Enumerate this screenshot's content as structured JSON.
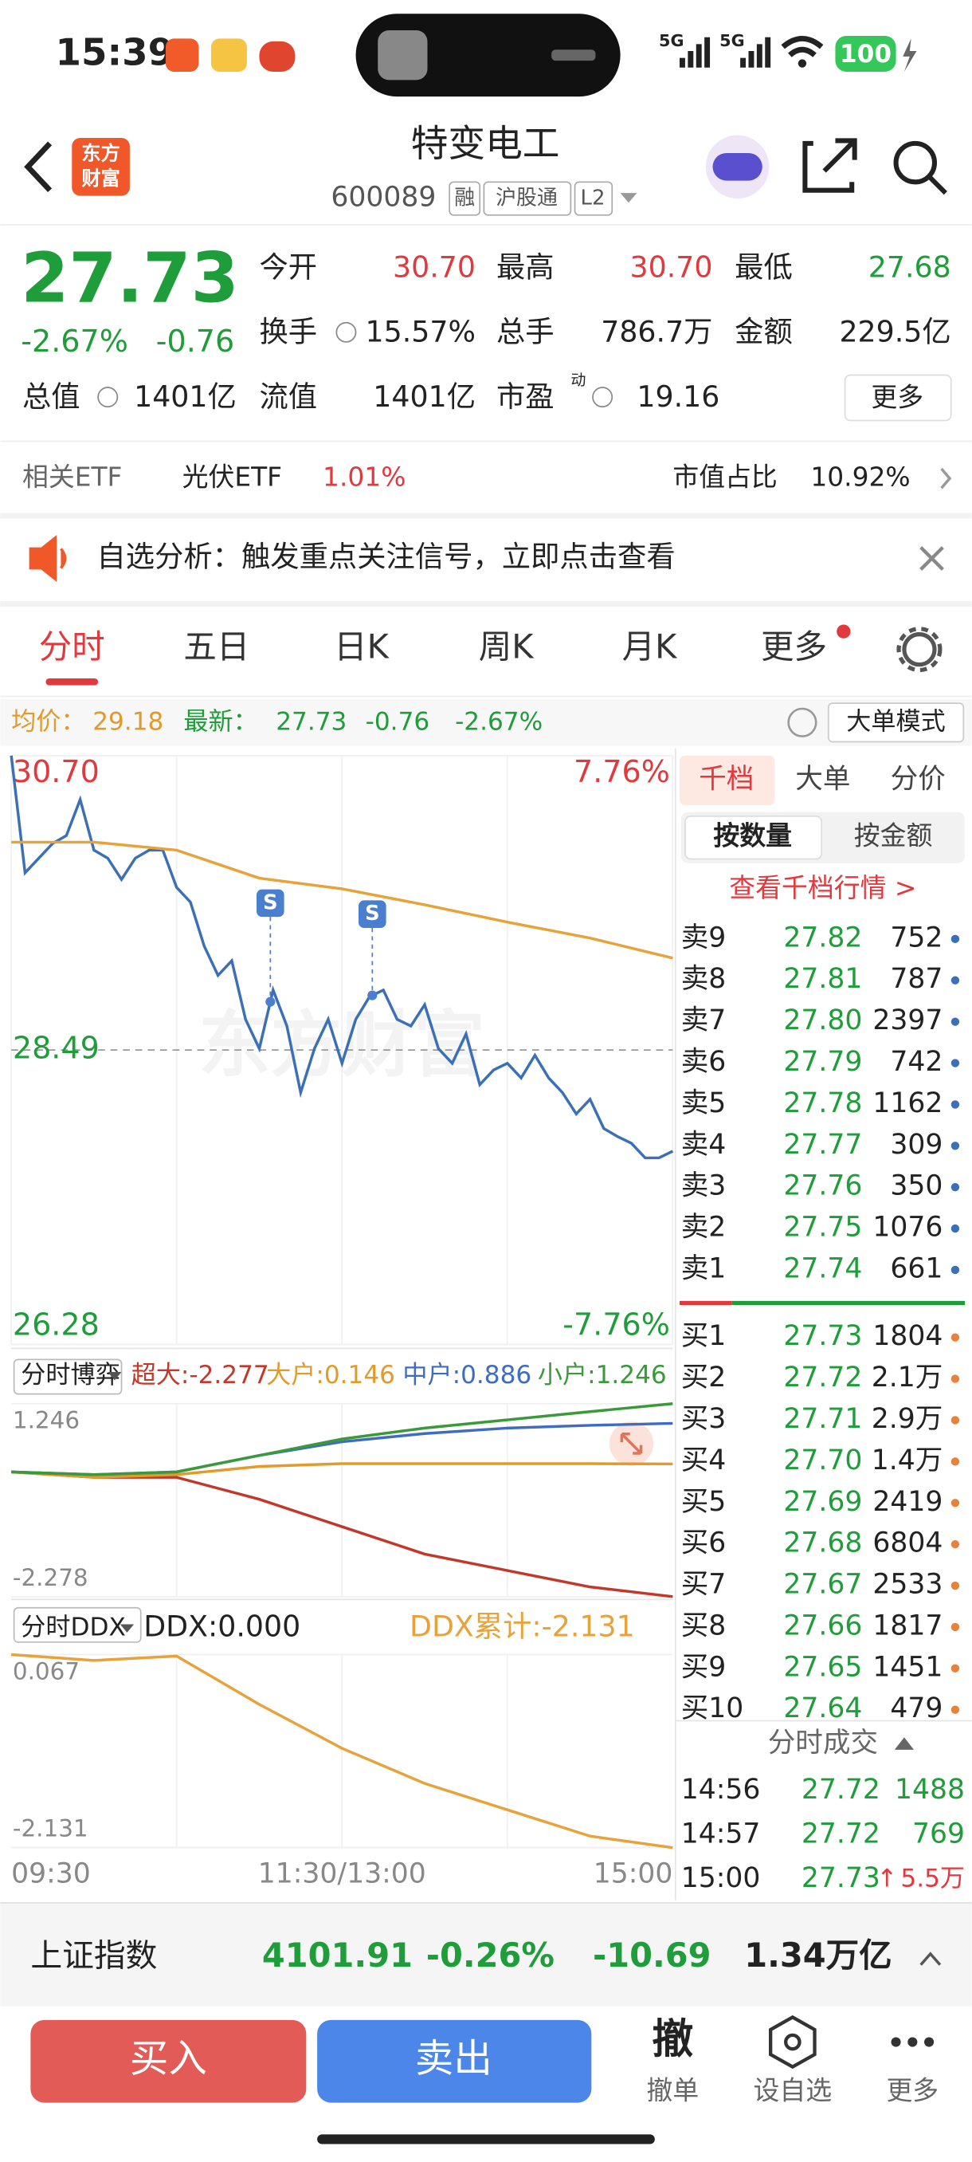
{
  "status_bar": {
    "time": "15:39",
    "network": "5G",
    "network2": "5G",
    "battery": "100"
  },
  "header": {
    "logo_line1": "东方",
    "logo_line2": "财富",
    "title": "特变电工",
    "code": "600089",
    "tags": [
      "融",
      "沪股通",
      "L2"
    ]
  },
  "quote": {
    "price": "27.73",
    "change_pct": "-2.67%",
    "change": "-0.76",
    "open_label": "今开",
    "open": "30.70",
    "high_label": "最高",
    "high": "30.70",
    "low_label": "最低",
    "low": "27.68",
    "turnover_rate_label": "换手",
    "turnover_rate": "15.57%",
    "volume_label": "总手",
    "volume": "786.7万",
    "amount_label": "金额",
    "amount": "229.5亿",
    "total_value_label": "总值",
    "total_value": "1401亿",
    "float_value_label": "流值",
    "float_value": "1401亿",
    "pe_label": "市盈",
    "pe_superscript": "动",
    "pe": "19.16",
    "more": "更多"
  },
  "etf": {
    "label": "相关ETF",
    "name": "光伏ETF",
    "change": "1.01%",
    "share_label": "市值占比",
    "share": "10.92%"
  },
  "notice": {
    "text": "自选分析：触发重点关注信号，立即点击查看"
  },
  "tabs": [
    "分时",
    "五日",
    "日K",
    "周K",
    "月K",
    "更多"
  ],
  "chart_info": {
    "avg_label": "均价：",
    "avg": "29.18",
    "latest_label": "最新：",
    "latest": "27.73",
    "change": "-0.76",
    "change_pct": "-2.67%",
    "mode": "大单模式"
  },
  "chart_data": [
    {
      "type": "line",
      "watermark": "东方财富",
      "x": [
        0,
        5,
        10,
        15,
        20,
        25,
        30,
        35,
        40,
        45,
        50,
        55,
        60,
        65,
        70,
        75,
        80,
        85,
        90,
        95,
        100,
        105,
        110,
        115,
        120,
        125,
        130,
        135,
        140,
        145,
        150,
        155,
        160,
        165,
        170,
        175,
        180,
        185,
        190,
        195,
        200,
        205,
        210,
        215,
        220,
        225,
        230,
        235,
        240
      ],
      "xlim": [
        0,
        240
      ],
      "xticks": [
        {
          "value": 0,
          "label": "09:30"
        },
        {
          "value": 120,
          "label": "11:30/13:00"
        },
        {
          "value": 240,
          "label": "15:00"
        }
      ],
      "ylim": [
        26.28,
        30.7
      ],
      "yticks": [
        26.28,
        28.49,
        {
          "value": 30.7,
          "label": "30.70"
        }
      ],
      "y2lim": [
        -7.76,
        7.76
      ],
      "y2ticks": [
        {
          "value": -7.76,
          "label": "-7.76%"
        },
        {
          "value": 7.76,
          "label": "7.76%"
        }
      ],
      "series": [
        {
          "color": "#3b6fb6",
          "values": [
            30.7,
            29.82,
            29.93,
            30.04,
            30.1,
            30.37,
            29.99,
            29.93,
            29.77,
            29.93,
            29.99,
            29.99,
            29.71,
            29.6,
            29.27,
            29.05,
            29.16,
            28.72,
            28.5,
            28.94,
            28.67,
            28.17,
            28.5,
            28.72,
            28.39,
            28.72,
            28.89,
            28.94,
            28.72,
            28.67,
            28.83,
            28.5,
            28.39,
            28.61,
            28.23,
            28.34,
            28.39,
            28.28,
            28.45,
            28.28,
            28.17,
            28.01,
            28.12,
            27.9,
            27.84,
            27.79,
            27.68,
            27.68,
            27.73
          ]
        },
        {
          "color": "#e8a23a",
          "x": [
            0,
            30,
            60,
            90,
            120,
            150,
            180,
            210,
            240
          ],
          "values": [
            30.05,
            30.05,
            29.99,
            29.78,
            29.7,
            29.58,
            29.45,
            29.33,
            29.18
          ]
        }
      ],
      "annotations": [
        {
          "label": "S",
          "x": 94
        },
        {
          "label": "S",
          "x": 131
        }
      ]
    },
    {
      "type": "line",
      "selector": "分时博弈",
      "x": [
        0,
        30,
        60,
        90,
        120,
        150,
        180,
        210,
        240
      ],
      "xlim": [
        0,
        240
      ],
      "ylim": [
        -2.278,
        1.246
      ],
      "yticks": [
        -2.278,
        1.246
      ],
      "series": [
        {
          "name": "超大:",
          "color": "#c0392b",
          "values": [
            0,
            -0.1,
            -0.1,
            -0.5,
            -1.0,
            -1.5,
            -1.8,
            -2.1,
            -2.277
          ]
        },
        {
          "name": "大户:",
          "color": "#e39a2a",
          "values": [
            0,
            -0.1,
            -0.05,
            0.1,
            0.15,
            0.15,
            0.15,
            0.15,
            0.146
          ]
        },
        {
          "name": "中户:",
          "color": "#3f6cc0",
          "values": [
            0,
            -0.05,
            0.0,
            0.3,
            0.55,
            0.7,
            0.8,
            0.85,
            0.886
          ]
        },
        {
          "name": "小户:",
          "color": "#3a9a3a",
          "values": [
            0,
            -0.05,
            0.0,
            0.3,
            0.6,
            0.8,
            0.95,
            1.1,
            1.246
          ]
        }
      ]
    },
    {
      "type": "line",
      "selector": "分时DDX",
      "indicator": "DDX:0.000",
      "x": [
        0,
        30,
        60,
        90,
        120,
        150,
        180,
        210,
        240
      ],
      "xlim": [
        0,
        240
      ],
      "ylim": [
        -2.131,
        0.067
      ],
      "yticks": [
        -2.131,
        0.067
      ],
      "series": [
        {
          "name": "DDX累计:",
          "color": "#e8a23a",
          "values": [
            0.067,
            0.0,
            0.05,
            -0.5,
            -1.0,
            -1.4,
            -1.7,
            -2.0,
            -2.131
          ]
        }
      ]
    }
  ],
  "order_book": {
    "tabs": [
      "千档",
      "大单",
      "分价"
    ],
    "modes": [
      "按数量",
      "按金额"
    ],
    "link": "查看千档行情 >",
    "asks": [
      {
        "label": "卖9",
        "price": "27.82",
        "volume": "752"
      },
      {
        "label": "卖8",
        "price": "27.81",
        "volume": "787"
      },
      {
        "label": "卖7",
        "price": "27.80",
        "volume": "2397"
      },
      {
        "label": "卖6",
        "price": "27.79",
        "volume": "742"
      },
      {
        "label": "卖5",
        "price": "27.78",
        "volume": "1162"
      },
      {
        "label": "卖4",
        "price": "27.77",
        "volume": "309"
      },
      {
        "label": "卖3",
        "price": "27.76",
        "volume": "350"
      },
      {
        "label": "卖2",
        "price": "27.75",
        "volume": "1076"
      },
      {
        "label": "卖1",
        "price": "27.74",
        "volume": "661"
      }
    ],
    "bids": [
      {
        "label": "买1",
        "price": "27.73",
        "volume": "1804"
      },
      {
        "label": "买2",
        "price": "27.72",
        "volume": "2.1万"
      },
      {
        "label": "买3",
        "price": "27.71",
        "volume": "2.9万"
      },
      {
        "label": "买4",
        "price": "27.70",
        "volume": "1.4万"
      },
      {
        "label": "买5",
        "price": "27.69",
        "volume": "2419"
      },
      {
        "label": "买6",
        "price": "27.68",
        "volume": "6804"
      },
      {
        "label": "买7",
        "price": "27.67",
        "volume": "2533"
      },
      {
        "label": "买8",
        "price": "27.66",
        "volume": "1817"
      },
      {
        "label": "买9",
        "price": "27.65",
        "volume": "1451"
      },
      {
        "label": "买10",
        "price": "27.64",
        "volume": "479"
      }
    ]
  },
  "trades": {
    "title": "分时成交",
    "rows": [
      {
        "time": "14:56",
        "price": "27.72",
        "volume": "1488"
      },
      {
        "time": "14:57",
        "price": "27.72",
        "volume": "769"
      },
      {
        "time": "15:00",
        "price": "27.73",
        "direction": "↑",
        "volume": "5.5万"
      }
    ]
  },
  "index_bar": {
    "name": "上证指数",
    "value": "4101.91",
    "change_pct": "-0.26%",
    "change": "-10.69",
    "amount": "1.34万亿"
  },
  "bottom_bar": {
    "buy": "买入",
    "sell": "卖出",
    "cancel_icon": "撤",
    "cancel": "撤单",
    "watchlist": "设自选",
    "more": "更多"
  }
}
